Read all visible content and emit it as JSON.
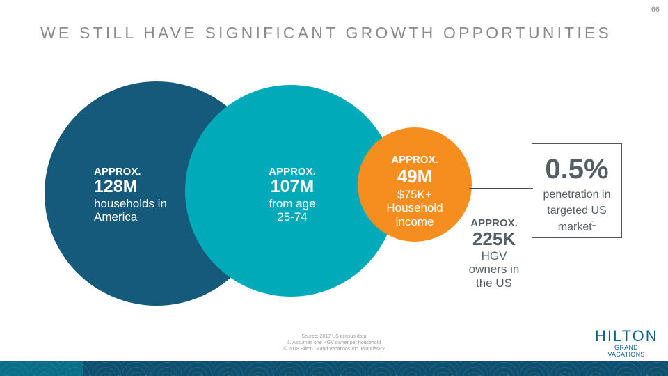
{
  "page_number": "66",
  "title": "WE STILL HAVE SIGNIFICANT GROWTH OPPORTUNITIES",
  "stats": {
    "america": {
      "approx": "APPROX.",
      "value": "128M",
      "desc_line1": "households in",
      "desc_line2": "America"
    },
    "age": {
      "approx": "APPROX.",
      "value": "107M",
      "desc_line1": "from age",
      "desc_line2": "25-74"
    },
    "income": {
      "approx": "APPROX.",
      "value": "49M",
      "desc_line1": "$75K+",
      "desc_line2": "Household",
      "desc_line3": "income"
    },
    "owners": {
      "approx": "APPROX.",
      "value": "225K",
      "desc_line1": "HGV",
      "desc_line2": "owners in",
      "desc_line3": "the US"
    }
  },
  "penetration": {
    "value": "0.5%",
    "desc_line1": "penetration in",
    "desc_line2": "targeted US",
    "desc_line3": "market",
    "footnote_marker": "1"
  },
  "footnotes": {
    "source": "Source: 2017 US census data",
    "note1": "1. Assumes one HGV owner per household",
    "copyright": "© 2018 Hilton Grand Vacations Inc. Proprietary"
  },
  "logo": {
    "main": "HILTON",
    "sub": "GRAND VACATIONS"
  },
  "colors": {
    "america_circle": "#155a7a",
    "age_circle": "#00aab8",
    "income_circle": "#f68d1f",
    "brand_blue": "#0f5f86"
  }
}
